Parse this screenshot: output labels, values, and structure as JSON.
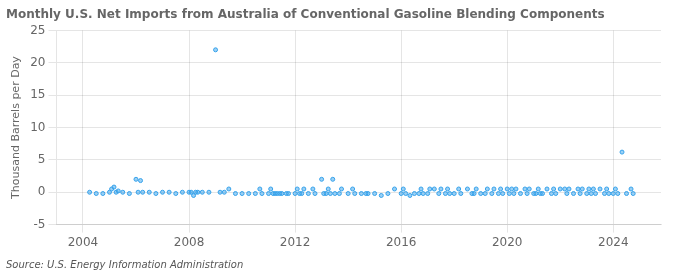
{
  "chart_data": {
    "type": "scatter",
    "title": "Monthly U.S. Net Imports from Australia of Conventional Gasoline Blending Components",
    "ylabel": "Thousand Barrels per Day",
    "annotation": "Source: U.S. Energy Information Administration",
    "xlim": [
      2003.0,
      2025.8
    ],
    "xticks": [
      2004,
      2008,
      2012,
      2016,
      2020,
      2024
    ],
    "ylim": [
      -5,
      25
    ],
    "yticks": [
      -5,
      0,
      5,
      10,
      15,
      20,
      25
    ],
    "grid": true,
    "x": [
      2004.25,
      2004.5,
      2004.75,
      2005.0,
      2005.08,
      2005.17,
      2005.25,
      2005.33,
      2005.5,
      2005.75,
      2006.0,
      2006.08,
      2006.17,
      2006.25,
      2006.5,
      2006.75,
      2007.0,
      2007.25,
      2007.5,
      2007.75,
      2008.0,
      2008.08,
      2008.17,
      2008.25,
      2008.33,
      2008.5,
      2008.75,
      2009.0,
      2009.17,
      2009.33,
      2009.5,
      2009.75,
      2010.0,
      2010.25,
      2010.5,
      2010.67,
      2010.75,
      2011.0,
      2011.08,
      2011.17,
      2011.25,
      2011.33,
      2011.42,
      2011.5,
      2011.67,
      2011.75,
      2012.0,
      2012.08,
      2012.17,
      2012.25,
      2012.33,
      2012.5,
      2012.67,
      2012.75,
      2013.0,
      2013.08,
      2013.17,
      2013.25,
      2013.33,
      2013.42,
      2013.5,
      2013.67,
      2013.75,
      2014.0,
      2014.17,
      2014.25,
      2014.5,
      2014.67,
      2014.75,
      2015.0,
      2015.25,
      2015.5,
      2015.75,
      2016.0,
      2016.08,
      2016.17,
      2016.33,
      2016.5,
      2016.67,
      2016.75,
      2016.83,
      2017.0,
      2017.08,
      2017.25,
      2017.42,
      2017.5,
      2017.67,
      2017.75,
      2017.83,
      2018.0,
      2018.17,
      2018.25,
      2018.5,
      2018.67,
      2018.75,
      2018.83,
      2019.0,
      2019.17,
      2019.25,
      2019.42,
      2019.5,
      2019.67,
      2019.75,
      2019.83,
      2020.0,
      2020.08,
      2020.17,
      2020.25,
      2020.33,
      2020.5,
      2020.67,
      2020.75,
      2020.83,
      2021.0,
      2021.08,
      2021.17,
      2021.25,
      2021.33,
      2021.5,
      2021.67,
      2021.75,
      2021.83,
      2022.0,
      2022.17,
      2022.25,
      2022.33,
      2022.5,
      2022.67,
      2022.75,
      2022.83,
      2023.0,
      2023.08,
      2023.17,
      2023.25,
      2023.33,
      2023.5,
      2023.67,
      2023.75,
      2023.83,
      2024.0,
      2024.08,
      2024.17,
      2024.33,
      2024.5,
      2024.67,
      2024.75
    ],
    "values": [
      0,
      -0.2,
      -0.2,
      0,
      0.5,
      0.8,
      0,
      0.2,
      0,
      -0.2,
      2.0,
      0,
      1.8,
      0,
      0,
      -0.2,
      0,
      0,
      -0.2,
      0,
      0,
      0,
      -0.5,
      0,
      0,
      0,
      0,
      22.0,
      0,
      0,
      0.5,
      -0.2,
      -0.2,
      -0.2,
      -0.2,
      0.5,
      -0.2,
      -0.2,
      0.5,
      -0.2,
      -0.2,
      -0.2,
      -0.2,
      -0.2,
      -0.2,
      -0.2,
      -0.2,
      0.5,
      -0.2,
      -0.2,
      0.5,
      -0.2,
      0.5,
      -0.2,
      2.0,
      -0.2,
      -0.2,
      0.5,
      -0.2,
      2.0,
      -0.2,
      -0.2,
      0.5,
      -0.2,
      0.5,
      -0.2,
      -0.2,
      -0.2,
      -0.2,
      -0.2,
      -0.5,
      -0.2,
      0.5,
      -0.2,
      0.5,
      -0.2,
      -0.5,
      -0.2,
      -0.2,
      0.5,
      -0.2,
      -0.2,
      0.5,
      0.5,
      -0.2,
      0.5,
      -0.2,
      0.5,
      -0.2,
      -0.2,
      0.5,
      -0.2,
      0.5,
      -0.2,
      -0.2,
      0.5,
      -0.2,
      -0.2,
      0.5,
      -0.2,
      0.5,
      -0.2,
      0.5,
      -0.2,
      0.5,
      -0.2,
      0.5,
      -0.2,
      0.5,
      -0.2,
      0.5,
      -0.2,
      0.5,
      -0.2,
      -0.2,
      0.5,
      -0.2,
      -0.2,
      0.5,
      -0.2,
      0.5,
      -0.2,
      0.5,
      0.5,
      -0.2,
      0.5,
      -0.2,
      0.5,
      -0.2,
      0.5,
      -0.2,
      0.5,
      -0.2,
      0.5,
      -0.2,
      0.5,
      -0.2,
      0.5,
      -0.2,
      -0.2,
      0.5,
      -0.2,
      6.2,
      -0.2,
      0.5,
      -0.2
    ]
  }
}
